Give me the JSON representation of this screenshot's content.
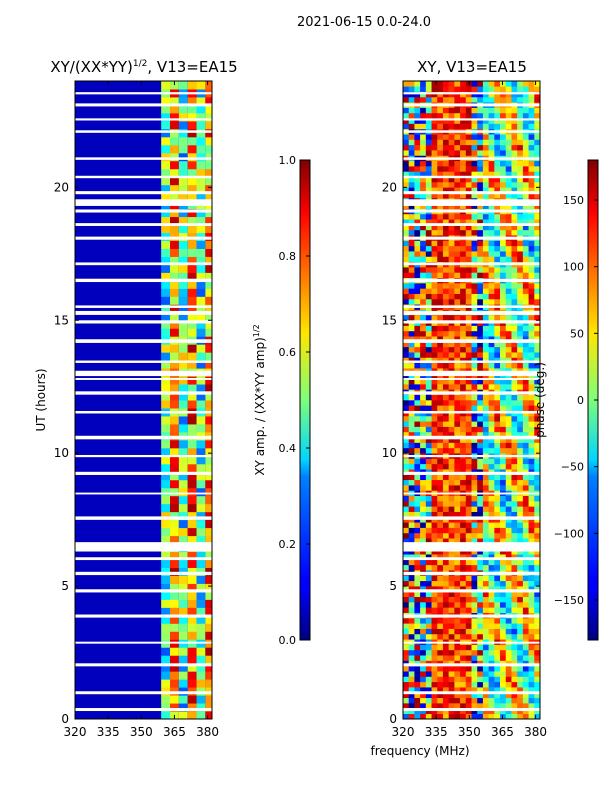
{
  "suptitle": "2021-06-15 0.0-24.0",
  "chart_data": [
    {
      "type": "heatmap",
      "title": "XY/(XX*YY)^{1/2}, V13=EA15",
      "title_main": "XY/(XX*YY)",
      "title_exp": "1/2",
      "title_tail": ", V13=EA15",
      "xlabel": "",
      "ylabel": "UT (hours)",
      "xlim": [
        320,
        382
      ],
      "ylim": [
        0,
        24
      ],
      "xticks": [
        320,
        335,
        350,
        365,
        380
      ],
      "yticks": [
        0,
        5,
        10,
        15,
        20
      ],
      "colormap": "jet",
      "description_values": "amplitude near 0 for 320-359 MHz, 0.3-1.0 band 359-382 MHz"
    },
    {
      "type": "heatmap",
      "title": "XY, V13=EA15",
      "xlabel": "frequency (MHz)",
      "ylabel": "",
      "xlim": [
        320,
        382
      ],
      "ylim": [
        0,
        24
      ],
      "xticks": [
        320,
        335,
        350,
        365,
        380
      ],
      "yticks": [
        0,
        5,
        10,
        15,
        20
      ],
      "colormap": "jet",
      "description_values": "phase values spanning -180 to 180 deg"
    }
  ],
  "colorbars": [
    {
      "label": "XY amp. / (XX*YY amp)^{1/2}",
      "label_main": "XY amp. / (XX*YY amp)",
      "label_exp": "1/2",
      "range": [
        0.0,
        1.0
      ],
      "ticks": [
        0.0,
        0.2,
        0.4,
        0.6,
        0.8,
        1.0
      ],
      "tick_labels": [
        "0.0",
        "0.2",
        "0.4",
        "0.6",
        "0.8",
        "1.0"
      ]
    },
    {
      "label": "phase (deg.)",
      "range": [
        -180,
        180
      ],
      "ticks": [
        -150,
        -100,
        -50,
        0,
        50,
        100,
        150
      ],
      "tick_labels": [
        "−150",
        "−100",
        "−50",
        "0",
        "50",
        "100",
        "150"
      ]
    }
  ]
}
